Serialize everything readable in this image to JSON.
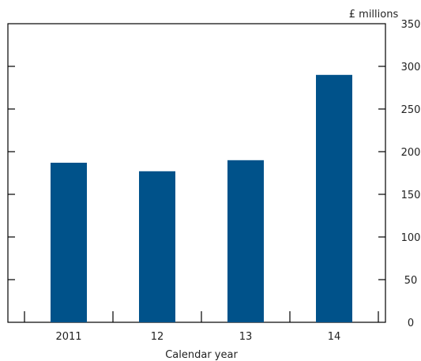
{
  "chart_data": {
    "type": "bar",
    "categories": [
      "2011",
      "12",
      "13",
      "14"
    ],
    "values": [
      187,
      177,
      190,
      290
    ],
    "ylabel": "£ millions",
    "xlabel": "Calendar year",
    "ylim": [
      0,
      350
    ],
    "yticks": [
      0,
      50,
      100,
      150,
      200,
      250,
      300,
      350
    ],
    "y_axis_position": "right",
    "grid": false,
    "legend": "none",
    "bar_color": "#00528a"
  }
}
